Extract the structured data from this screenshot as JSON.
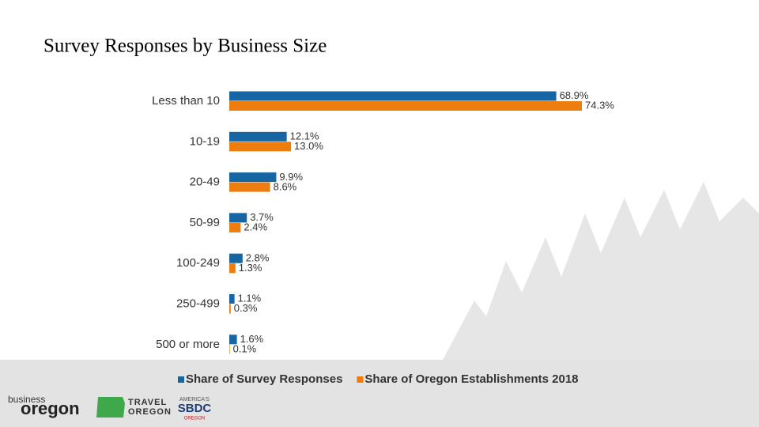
{
  "chart_data": {
    "type": "hbar",
    "title": "Survey Responses by Business Size",
    "categories": [
      "Less than 10",
      "10-19",
      "20-49",
      "50-99",
      "100-249",
      "250-499",
      "500 or more"
    ],
    "series": [
      {
        "name": "Share of Survey Responses",
        "color": "#1566a3",
        "values": [
          68.9,
          12.1,
          9.9,
          3.7,
          2.8,
          1.1,
          1.6
        ],
        "value_labels": [
          "68.9%",
          "12.1%",
          "9.9%",
          "3.7%",
          "2.8%",
          "1.1%",
          "1.6%"
        ]
      },
      {
        "name": "Share of Oregon Establishments 2018",
        "color": "#ed7d0e",
        "values": [
          74.3,
          13.0,
          8.6,
          2.4,
          1.3,
          0.3,
          0.1
        ],
        "value_labels": [
          "74.3%",
          "13.0%",
          "8.6%",
          "2.4%",
          "1.3%",
          "0.3%",
          "0.1%"
        ]
      }
    ],
    "legend": "bottom"
  },
  "footer": {
    "business_oregon": [
      "business",
      "oregon"
    ],
    "travel_oregon": [
      "TRAVEL",
      "OREGON"
    ],
    "sbdc": [
      "AMERICA'S",
      "SBDC",
      "OREGON"
    ]
  }
}
